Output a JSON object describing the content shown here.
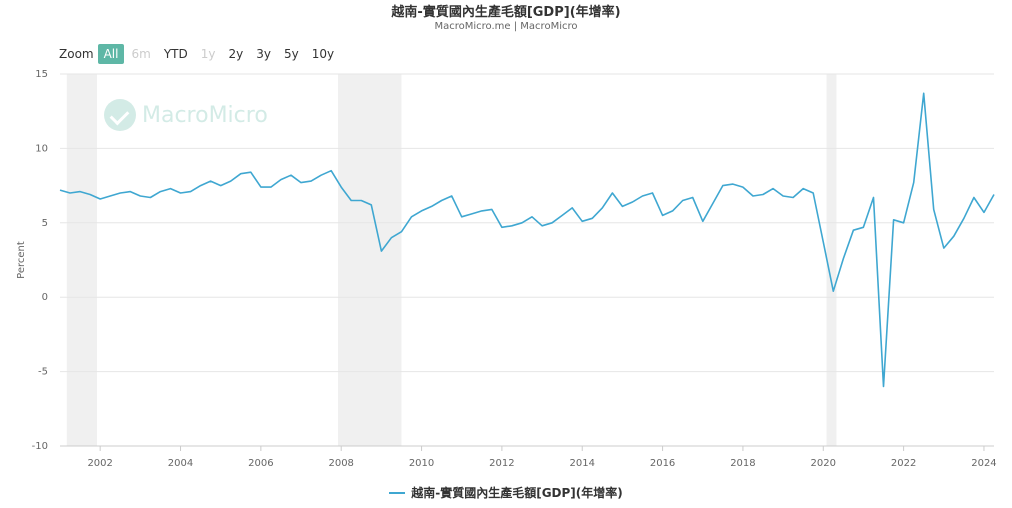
{
  "title": "越南-實質國內生產毛額[GDP](年增率)",
  "subtitle": "MacroMicro.me | MacroMicro",
  "watermark": "MacroMicro",
  "zoom": {
    "label": "Zoom",
    "buttons": [
      {
        "label": "All",
        "state": "active"
      },
      {
        "label": "6m",
        "state": "disabled"
      },
      {
        "label": "YTD",
        "state": "normal"
      },
      {
        "label": "1y",
        "state": "disabled"
      },
      {
        "label": "2y",
        "state": "normal"
      },
      {
        "label": "3y",
        "state": "normal"
      },
      {
        "label": "5y",
        "state": "normal"
      },
      {
        "label": "10y",
        "state": "normal"
      }
    ]
  },
  "colors": {
    "series": "#3fa7d1",
    "accent": "#5eb7a6",
    "grid": "#e6e6e6",
    "shade": "#f0f0f0"
  },
  "chart_data": {
    "type": "line",
    "ylabel": "Percent",
    "ylim": [
      -10,
      15
    ],
    "yticks": [
      -10,
      -5,
      0,
      5,
      10,
      15
    ],
    "xlim": [
      2001.0,
      2024.25
    ],
    "xticks": [
      "2002",
      "2004",
      "2006",
      "2008",
      "2010",
      "2012",
      "2014",
      "2016",
      "2018",
      "2020",
      "2022",
      "2024"
    ],
    "grid": true,
    "legend_position": "bottom-center",
    "recession_periods": [
      [
        2001.17,
        2001.92
      ],
      [
        2007.92,
        2009.5
      ],
      [
        2020.08,
        2020.33
      ]
    ],
    "series": [
      {
        "name": "越南-實質國內生產毛額[GDP](年增率)",
        "x": [
          2001.0,
          2001.25,
          2001.5,
          2001.75,
          2002.0,
          2002.25,
          2002.5,
          2002.75,
          2003.0,
          2003.25,
          2003.5,
          2003.75,
          2004.0,
          2004.25,
          2004.5,
          2004.75,
          2005.0,
          2005.25,
          2005.5,
          2005.75,
          2006.0,
          2006.25,
          2006.5,
          2006.75,
          2007.0,
          2007.25,
          2007.5,
          2007.75,
          2008.0,
          2008.25,
          2008.5,
          2008.75,
          2009.0,
          2009.25,
          2009.5,
          2009.75,
          2010.0,
          2010.25,
          2010.5,
          2010.75,
          2011.0,
          2011.25,
          2011.5,
          2011.75,
          2012.0,
          2012.25,
          2012.5,
          2012.75,
          2013.0,
          2013.25,
          2013.5,
          2013.75,
          2014.0,
          2014.25,
          2014.5,
          2014.75,
          2015.0,
          2015.25,
          2015.5,
          2015.75,
          2016.0,
          2016.25,
          2016.5,
          2016.75,
          2017.0,
          2017.25,
          2017.5,
          2017.75,
          2018.0,
          2018.25,
          2018.5,
          2018.75,
          2019.0,
          2019.25,
          2019.5,
          2019.75,
          2020.0,
          2020.25,
          2020.5,
          2020.75,
          2021.0,
          2021.25,
          2021.5,
          2021.75,
          2022.0,
          2022.25,
          2022.5,
          2022.75,
          2023.0,
          2023.25,
          2023.5,
          2023.75,
          2024.0,
          2024.25
        ],
        "y": [
          7.2,
          7.0,
          7.1,
          6.9,
          6.6,
          6.8,
          7.0,
          7.1,
          6.8,
          6.7,
          7.1,
          7.3,
          7.0,
          7.1,
          7.5,
          7.8,
          7.5,
          7.8,
          8.3,
          8.4,
          7.4,
          7.4,
          7.9,
          8.2,
          7.7,
          7.8,
          8.2,
          8.5,
          7.4,
          6.5,
          6.5,
          6.2,
          3.1,
          4.0,
          4.4,
          5.4,
          5.8,
          6.1,
          6.5,
          6.8,
          5.4,
          5.6,
          5.8,
          5.9,
          4.7,
          4.8,
          5.0,
          5.4,
          4.8,
          5.0,
          5.5,
          6.0,
          5.1,
          5.3,
          6.0,
          7.0,
          6.1,
          6.4,
          6.8,
          7.0,
          5.5,
          5.8,
          6.5,
          6.7,
          5.1,
          6.3,
          7.5,
          7.6,
          7.4,
          6.8,
          6.9,
          7.3,
          6.8,
          6.7,
          7.3,
          7.0,
          3.7,
          0.4,
          2.6,
          4.5,
          4.7,
          6.7,
          -6.0,
          5.2,
          5.0,
          7.7,
          13.7,
          5.9,
          3.3,
          4.1,
          5.3,
          6.7,
          5.7,
          6.9
        ]
      }
    ]
  }
}
